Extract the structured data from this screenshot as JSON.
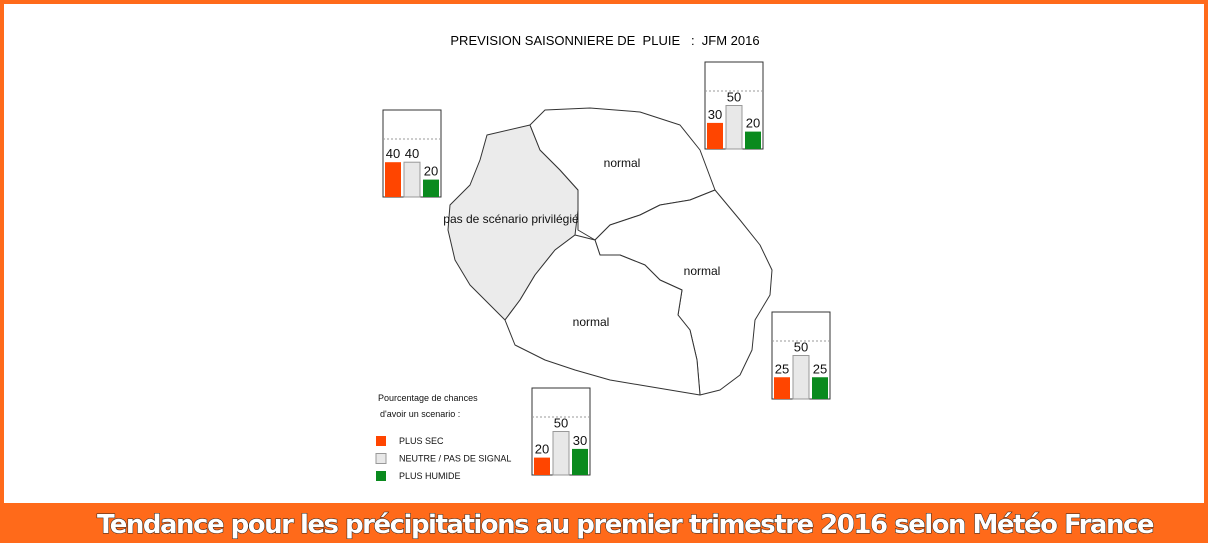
{
  "title": "PREVISION SAISONNIERE DE  PLUIE   :  JFM 2016",
  "regions": [
    {
      "label": "pas de scénario privilégié"
    },
    {
      "label": "normal"
    },
    {
      "label": "normal"
    },
    {
      "label": "normal"
    }
  ],
  "insets": [
    {
      "values": [
        40,
        40,
        20
      ]
    },
    {
      "values": [
        30,
        50,
        20
      ]
    },
    {
      "values": [
        25,
        50,
        25
      ]
    },
    {
      "values": [
        20,
        50,
        30
      ]
    }
  ],
  "legend": {
    "title_lines": [
      "Pourcentage de chances",
      "d'avoir un scenario :"
    ],
    "items": [
      {
        "label": "PLUS SEC",
        "color": "#ff4500"
      },
      {
        "label": "NEUTRE / PAS DE SIGNAL",
        "color": "#e8e8e8"
      },
      {
        "label": "PLUS HUMIDE",
        "color": "#0a8a1e"
      }
    ]
  },
  "caption": "Tendance pour les précipitations au premier trimestre 2016 selon Météo France"
}
